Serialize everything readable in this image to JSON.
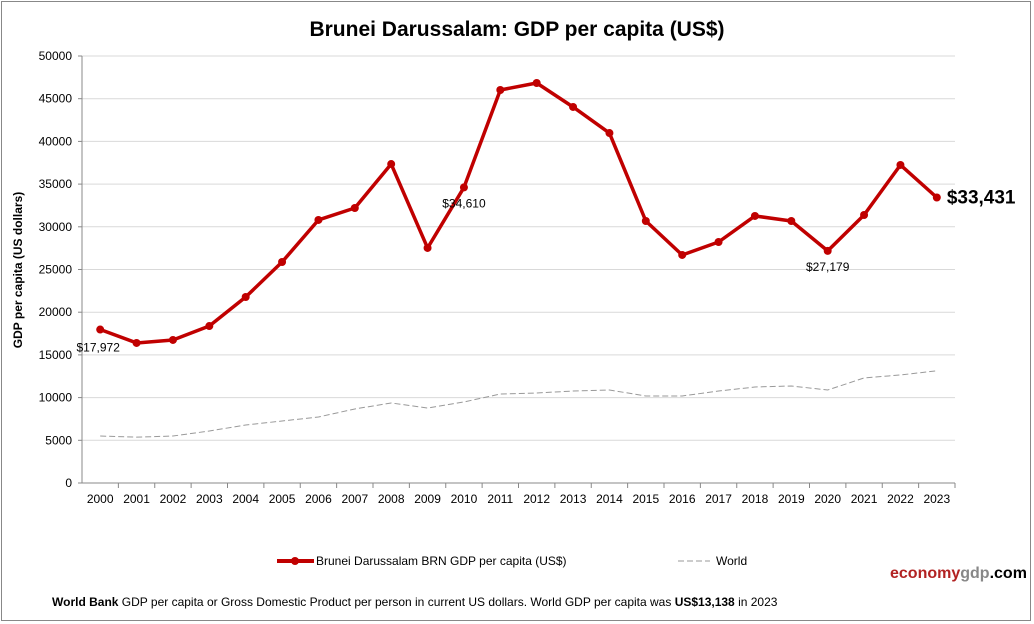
{
  "chart_data": {
    "type": "line",
    "title": "Brunei Darussalam: GDP per capita (US$)",
    "xlabel": "",
    "ylabel": "GDP per capita (US dollars)",
    "ylim": [
      0,
      50000
    ],
    "yticks": [
      "0",
      "5000",
      "10000",
      "15000",
      "20000",
      "25000",
      "30000",
      "35000",
      "40000",
      "45000",
      "50000"
    ],
    "grid": true,
    "legend_position": "bottom",
    "categories": [
      "2000",
      "2001",
      "2002",
      "2003",
      "2004",
      "2005",
      "2006",
      "2007",
      "2008",
      "2009",
      "2010",
      "2011",
      "2012",
      "2013",
      "2014",
      "2015",
      "2016",
      "2017",
      "2018",
      "2019",
      "2020",
      "2021",
      "2022",
      "2023"
    ],
    "series": [
      {
        "name": "Brunei Darussalam BRN GDP per capita (US$)",
        "color": "#c00000",
        "values": [
          17972,
          16400,
          16750,
          18380,
          21780,
          25880,
          30800,
          32200,
          37350,
          27520,
          34610,
          46020,
          46840,
          44030,
          40980,
          30680,
          26700,
          28220,
          31270,
          30680,
          27179,
          31380,
          37240,
          33431
        ]
      },
      {
        "name": "World",
        "color": "#999999",
        "dashed": true,
        "values": [
          5500,
          5370,
          5500,
          6090,
          6790,
          7260,
          7730,
          8670,
          9370,
          8780,
          9490,
          10420,
          10540,
          10770,
          10890,
          10190,
          10190,
          10770,
          11240,
          11360,
          10890,
          12300,
          12650,
          13138
        ]
      }
    ],
    "annotations": [
      {
        "year": "2000",
        "text": "$17,972"
      },
      {
        "year": "2010",
        "text": "$34,610"
      },
      {
        "year": "2020",
        "text": "$27,179"
      },
      {
        "year": "2023",
        "text": "$33,431"
      }
    ]
  },
  "brand": {
    "part1": "economy",
    "part2": "gdp",
    "part3": ".com",
    "color1": "#b22222",
    "color2": "#888888"
  },
  "footer": {
    "source": "World Bank",
    "text": " GDP per capita or Gross Domestic Product per person in current US dollars.   World GDP per capita was ",
    "world_value": "US$13,138",
    "suffix": " in 2023"
  }
}
